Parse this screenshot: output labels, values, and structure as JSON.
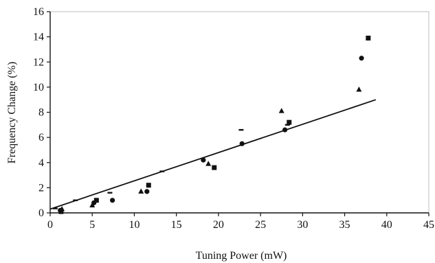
{
  "chart_data": {
    "type": "scatter",
    "xlabel": "Tuning Power (mW)",
    "ylabel": "Frequency Change (%)",
    "xlim": [
      0,
      45
    ],
    "ylim": [
      0,
      16
    ],
    "x_ticks": [
      "0",
      "5",
      "10",
      "15",
      "20",
      "25",
      "30",
      "35",
      "40",
      "45"
    ],
    "y_ticks": [
      "0",
      "2",
      "4",
      "6",
      "8",
      "10",
      "12",
      "14",
      "16"
    ],
    "grid": false,
    "legend": "none",
    "series": [
      {
        "marker": "square",
        "points": [
          [
            1.3,
            0.1
          ],
          [
            5.5,
            1.0
          ],
          [
            11.7,
            2.2
          ],
          [
            19.5,
            3.6
          ],
          [
            28.4,
            7.2
          ],
          [
            37.8,
            13.9
          ]
        ]
      },
      {
        "marker": "circle",
        "points": [
          [
            1.2,
            0.2
          ],
          [
            5.2,
            0.8
          ],
          [
            7.4,
            1.0
          ],
          [
            11.5,
            1.7
          ],
          [
            18.2,
            4.2
          ],
          [
            22.8,
            5.5
          ],
          [
            27.9,
            6.6
          ],
          [
            37.0,
            12.3
          ]
        ]
      },
      {
        "marker": "triangle",
        "points": [
          [
            1.4,
            0.3
          ],
          [
            5.0,
            0.6
          ],
          [
            10.8,
            1.7
          ],
          [
            18.8,
            3.9
          ],
          [
            27.5,
            8.1
          ],
          [
            36.7,
            9.8
          ]
        ]
      },
      {
        "marker": "dash",
        "points": [
          [
            0.6,
            0.35
          ],
          [
            3.0,
            1.0
          ],
          [
            7.1,
            1.6
          ],
          [
            13.3,
            3.3
          ],
          [
            22.7,
            6.6
          ],
          [
            28.2,
            7.0
          ]
        ]
      }
    ],
    "trendline": {
      "x": [
        0,
        38.7
      ],
      "y": [
        0.3,
        9.0
      ]
    }
  }
}
